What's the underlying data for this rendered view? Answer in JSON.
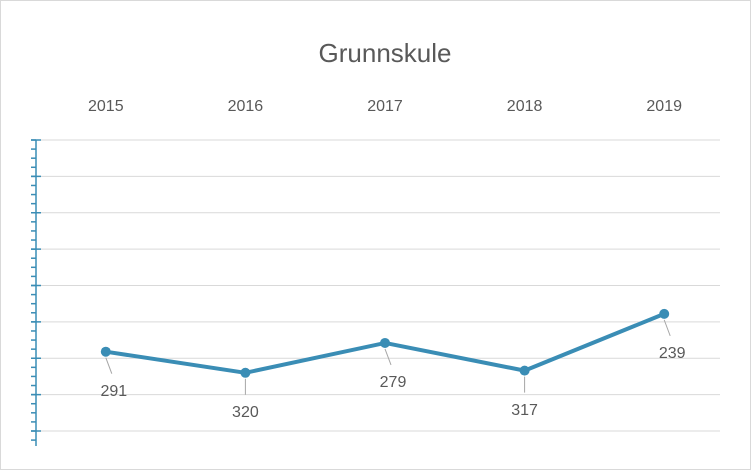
{
  "chart_data": {
    "type": "line",
    "title": "Grunnskule",
    "categories": [
      "2015",
      "2016",
      "2017",
      "2018",
      "2019"
    ],
    "series": [
      {
        "name": "Grunnskule",
        "color": "#3a8db5",
        "values": [
          291,
          320,
          279,
          317,
          239
        ]
      }
    ],
    "ylim": [
      0,
      400
    ],
    "yticks": [
      0,
      50,
      100,
      150,
      200,
      250,
      300,
      350,
      400
    ],
    "y_inverted": true,
    "grid": true,
    "x_axis_position": "top",
    "axis_color": "#3a8db5",
    "data_labels": true
  }
}
